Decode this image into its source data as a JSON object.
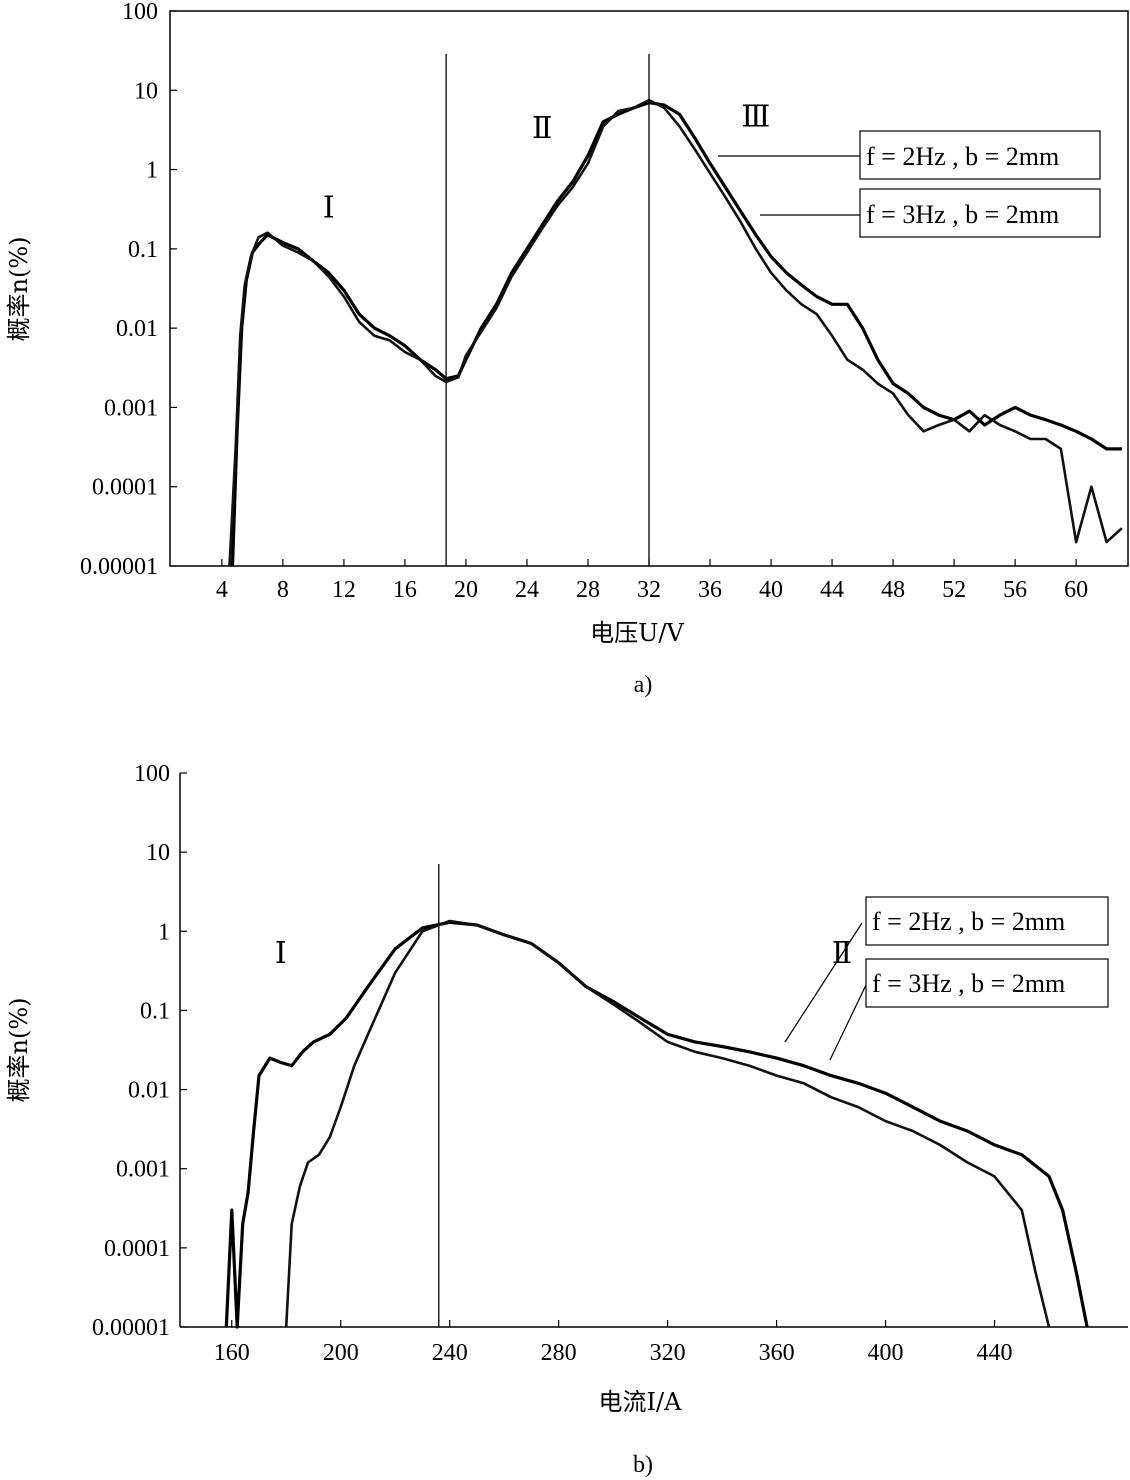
{
  "chart_data": [
    {
      "id": "a",
      "type": "line",
      "caption": "a)",
      "xlabel": "电压U/V",
      "ylabel": "概率n(%)",
      "y_scale": "log",
      "xlim": [
        0.6,
        63.4
      ],
      "ylim": [
        1e-05,
        100
      ],
      "x_ticks": [
        4,
        8,
        12,
        16,
        20,
        24,
        28,
        32,
        36,
        40,
        44,
        48,
        52,
        56,
        60
      ],
      "y_ticks": [
        1e-05,
        0.0001,
        0.001,
        0.01,
        0.1,
        1,
        10,
        100
      ],
      "y_tick_labels": [
        "0.00001",
        "0.0001",
        "0.001",
        "0.01",
        "0.1",
        "1",
        "10",
        "100"
      ],
      "vlines": [
        18.7,
        32
      ],
      "regions": [
        {
          "label": "Ⅰ",
          "x": 11,
          "y": 0.25
        },
        {
          "label": "Ⅱ",
          "x": 25,
          "y": 2.5
        },
        {
          "label": "Ⅲ",
          "x": 39,
          "y": 3.5
        }
      ],
      "legend": [
        "f = 2Hz , b = 2mm",
        "f = 3Hz , b = 2mm"
      ],
      "series": [
        {
          "name": "f = 2Hz , b = 2mm",
          "x": [
            4.7,
            5.0,
            5.3,
            5.6,
            6.0,
            6.5,
            7.0,
            8,
            9,
            10,
            11,
            12,
            13,
            14,
            15,
            16,
            17,
            18,
            18.7,
            19.5,
            20,
            21,
            22,
            23,
            24,
            25,
            26,
            27,
            28,
            29,
            30,
            31,
            32,
            33,
            34,
            35,
            36,
            37,
            38,
            39,
            40,
            41,
            42,
            43,
            44,
            45,
            46,
            47,
            48,
            49,
            50,
            51,
            52,
            53,
            54,
            55,
            56,
            57,
            58,
            59,
            60,
            61,
            62,
            63
          ],
          "y": [
            1e-05,
            0.0005,
            0.01,
            0.04,
            0.09,
            0.12,
            0.15,
            0.12,
            0.1,
            0.07,
            0.05,
            0.03,
            0.015,
            0.01,
            0.008,
            0.006,
            0.004,
            0.003,
            0.0023,
            0.0025,
            0.004,
            0.01,
            0.02,
            0.05,
            0.1,
            0.2,
            0.4,
            0.7,
            1.5,
            4,
            5,
            6,
            7,
            6.5,
            5,
            2.5,
            1.2,
            0.6,
            0.3,
            0.15,
            0.08,
            0.05,
            0.035,
            0.025,
            0.02,
            0.02,
            0.01,
            0.004,
            0.002,
            0.0015,
            0.001,
            0.0008,
            0.0007,
            0.0009,
            0.0006,
            0.0008,
            0.001,
            0.0008,
            0.0007,
            0.0006,
            0.0005,
            0.0004,
            0.0003,
            0.0003
          ]
        },
        {
          "name": "f = 3Hz , b = 2mm",
          "x": [
            4.5,
            4.9,
            5.2,
            5.5,
            5.9,
            6.4,
            7.0,
            8,
            9,
            10,
            11,
            12,
            13,
            14,
            15,
            16,
            17,
            18,
            18.7,
            19.5,
            20,
            21,
            22,
            23,
            24,
            25,
            26,
            27,
            28,
            29,
            30,
            31,
            32,
            33,
            34,
            35,
            36,
            37,
            38,
            39,
            40,
            41,
            42,
            43,
            44,
            45,
            46,
            47,
            48,
            49,
            50,
            51,
            52,
            53,
            54,
            55,
            56,
            57,
            58,
            59,
            60,
            61,
            62,
            63
          ],
          "y": [
            1e-05,
            0.0003,
            0.008,
            0.035,
            0.08,
            0.14,
            0.16,
            0.11,
            0.09,
            0.07,
            0.045,
            0.025,
            0.012,
            0.008,
            0.007,
            0.005,
            0.004,
            0.0025,
            0.0021,
            0.0024,
            0.0045,
            0.009,
            0.018,
            0.045,
            0.09,
            0.18,
            0.35,
            0.6,
            1.2,
            3.5,
            5.5,
            6,
            7.5,
            6,
            3.5,
            1.8,
            0.9,
            0.45,
            0.22,
            0.1,
            0.05,
            0.03,
            0.02,
            0.015,
            0.008,
            0.004,
            0.003,
            0.002,
            0.0015,
            0.0008,
            0.0005,
            0.0006,
            0.0007,
            0.0005,
            0.0008,
            0.0006,
            0.0005,
            0.0004,
            0.0004,
            0.0003,
            2e-05,
            0.0001,
            2e-05,
            3e-05
          ]
        }
      ]
    },
    {
      "id": "b",
      "type": "line",
      "caption": "b)",
      "xlabel": "电流I/A",
      "ylabel": "概率n(%)",
      "y_scale": "log",
      "xlim": [
        141,
        489
      ],
      "ylim": [
        1e-05,
        100
      ],
      "x_ticks": [
        160,
        200,
        240,
        280,
        320,
        360,
        400,
        440
      ],
      "y_ticks": [
        1e-05,
        0.0001,
        0.001,
        0.01,
        0.1,
        1,
        10,
        100
      ],
      "y_tick_labels": [
        "0.00001",
        "0.0001",
        "0.001",
        "0.01",
        "0.1",
        "1",
        "10",
        "100"
      ],
      "vlines": [
        236
      ],
      "regions": [
        {
          "label": "Ⅰ",
          "x": 178,
          "y": 0.4
        },
        {
          "label": "Ⅱ",
          "x": 384,
          "y": 0.4
        }
      ],
      "legend": [
        "f = 2Hz , b = 2mm",
        "f = 3Hz , b = 2mm"
      ],
      "series": [
        {
          "name": "f = 2Hz , b = 2mm",
          "x": [
            158,
            160,
            162,
            164,
            166,
            168,
            170,
            174,
            178,
            182,
            186,
            190,
            196,
            202,
            210,
            220,
            230,
            240,
            250,
            260,
            270,
            280,
            290,
            300,
            310,
            320,
            330,
            340,
            350,
            360,
            370,
            380,
            390,
            400,
            410,
            420,
            430,
            440,
            450,
            460,
            465,
            470,
            474
          ],
          "y": [
            1e-05,
            0.0003,
            1e-05,
            0.0002,
            0.0005,
            0.003,
            0.015,
            0.025,
            0.022,
            0.02,
            0.03,
            0.04,
            0.05,
            0.08,
            0.2,
            0.6,
            1.1,
            1.3,
            1.2,
            0.9,
            0.7,
            0.4,
            0.2,
            0.13,
            0.08,
            0.05,
            0.04,
            0.035,
            0.03,
            0.025,
            0.02,
            0.015,
            0.012,
            0.009,
            0.006,
            0.004,
            0.003,
            0.002,
            0.0015,
            0.0008,
            0.0003,
            5e-05,
            1e-05
          ]
        },
        {
          "name": "f = 3Hz , b = 2mm",
          "x": [
            180,
            182,
            185,
            188,
            192,
            196,
            200,
            205,
            210,
            220,
            230,
            240,
            250,
            260,
            270,
            280,
            290,
            300,
            310,
            320,
            330,
            340,
            350,
            360,
            370,
            380,
            390,
            400,
            410,
            420,
            430,
            440,
            450,
            455,
            460
          ],
          "y": [
            1e-05,
            0.0002,
            0.0006,
            0.0012,
            0.0015,
            0.0025,
            0.006,
            0.02,
            0.05,
            0.3,
            1.0,
            1.35,
            1.2,
            0.9,
            0.7,
            0.4,
            0.2,
            0.12,
            0.07,
            0.04,
            0.03,
            0.025,
            0.02,
            0.015,
            0.012,
            0.008,
            0.006,
            0.004,
            0.003,
            0.002,
            0.0012,
            0.0008,
            0.0003,
            5e-05,
            1e-05
          ]
        }
      ]
    }
  ]
}
